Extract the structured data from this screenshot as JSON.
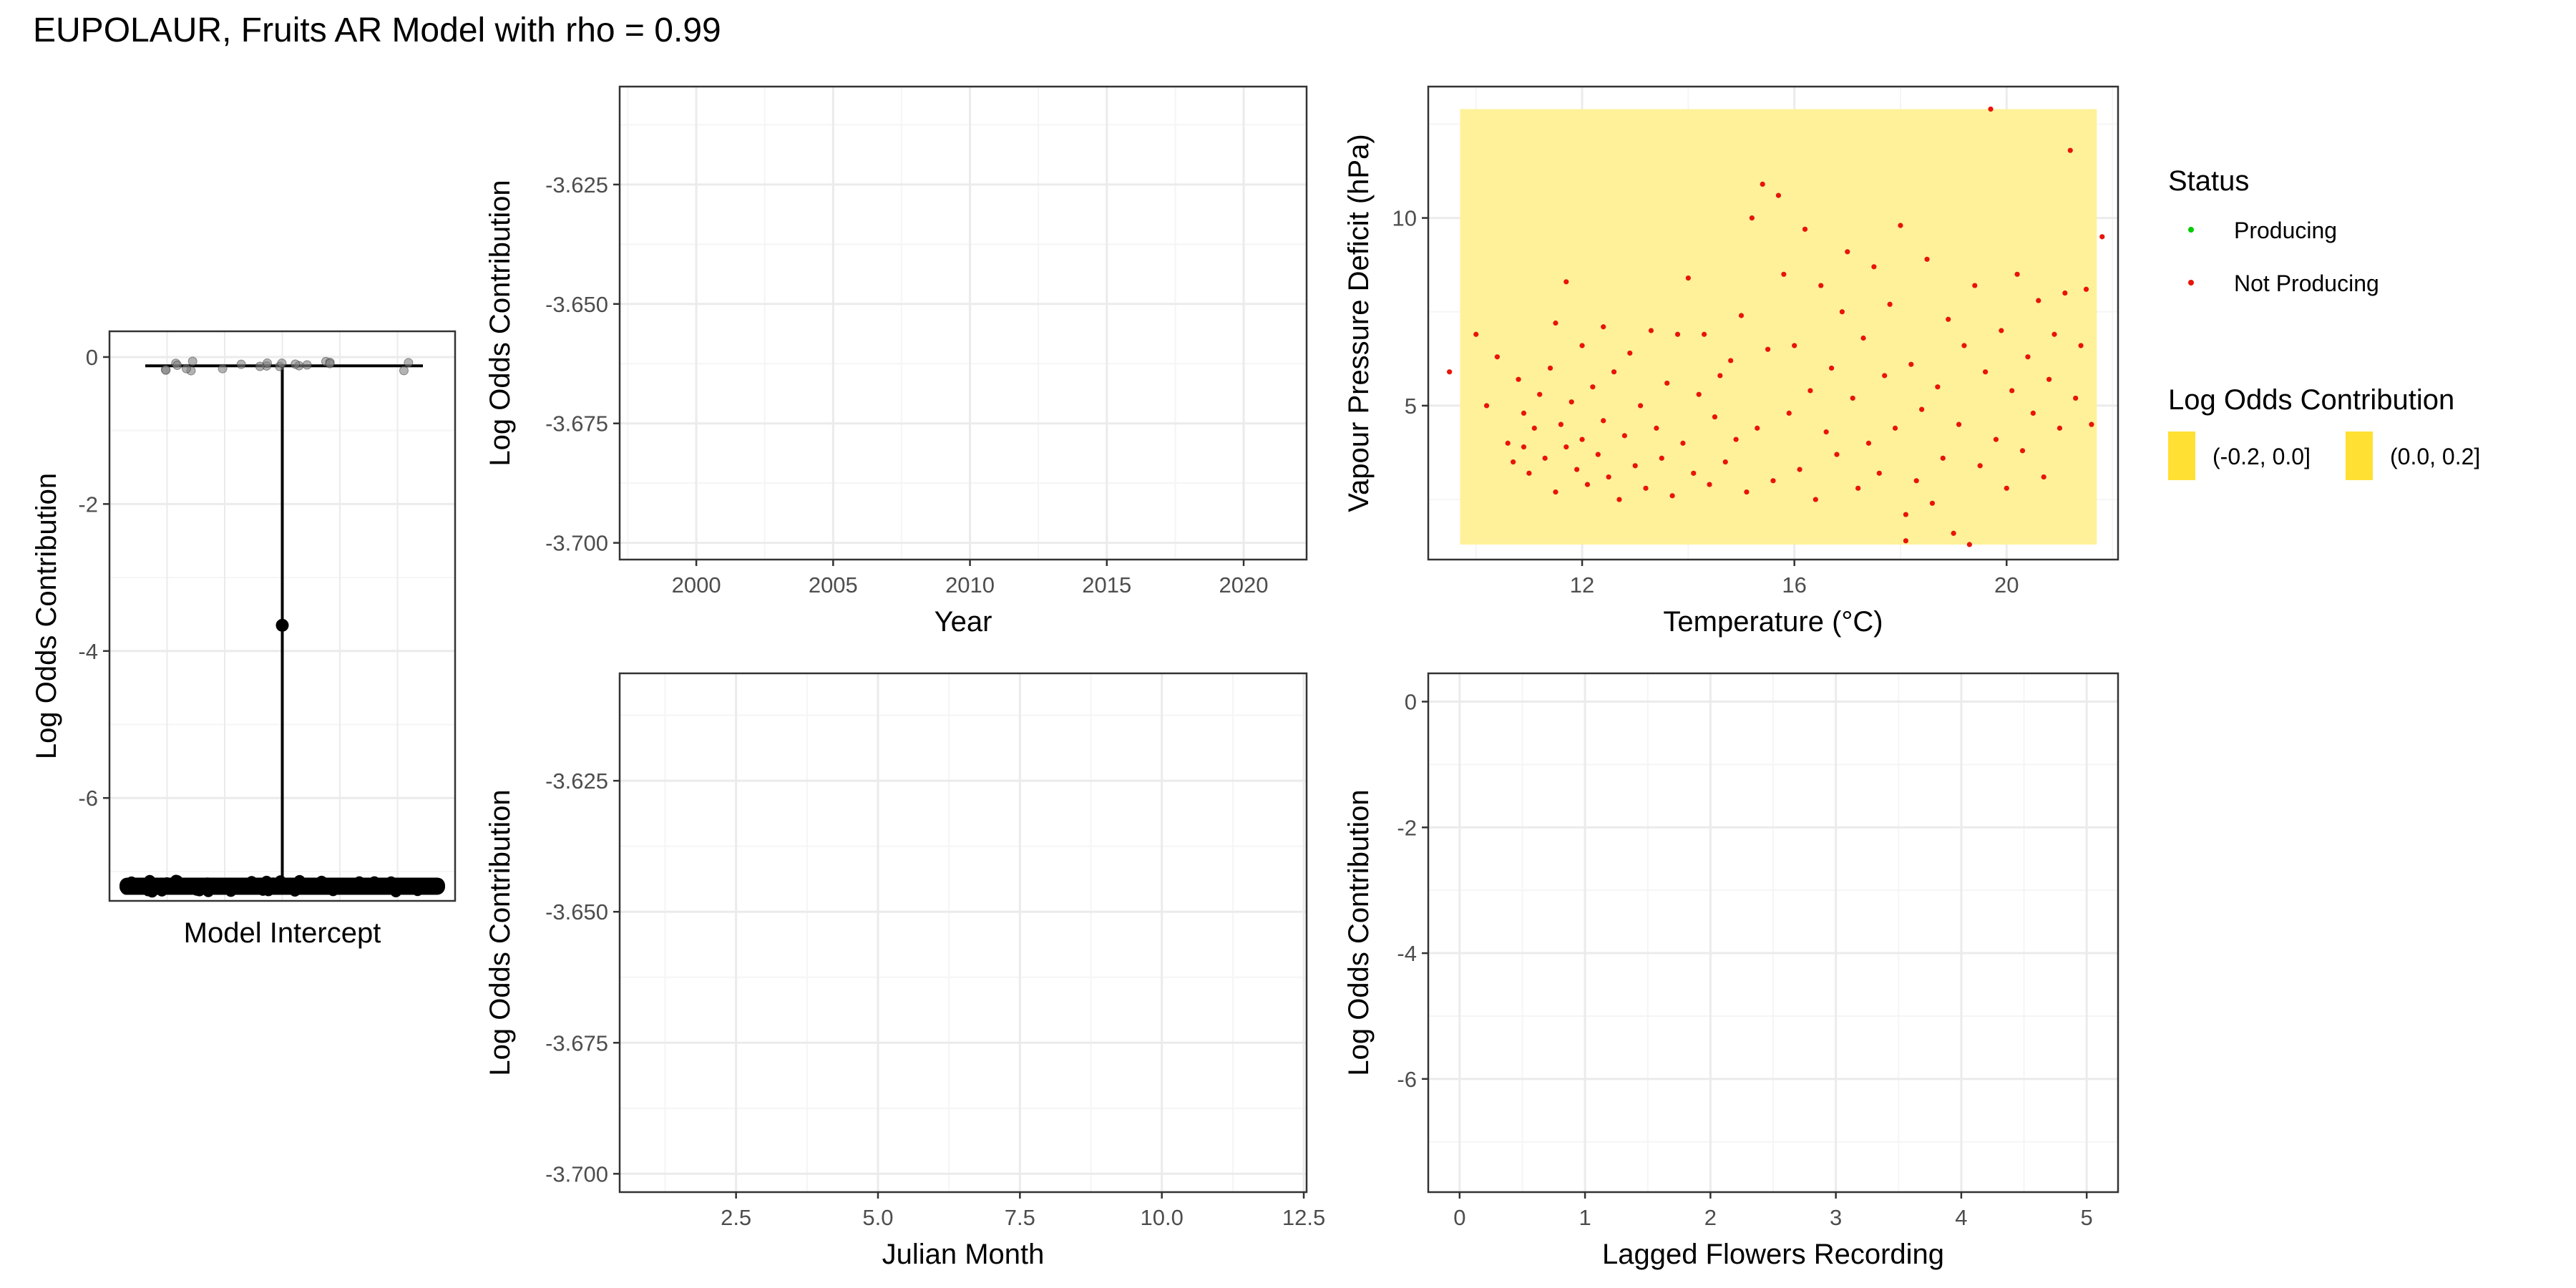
{
  "title": "EUPOLAUR, Fruits AR Model with rho = 0.99",
  "colors": {
    "panel_border": "#333333",
    "grid_major": "#ebebeb",
    "grid_minor": "#f5f5f5",
    "producing": "#00cc00",
    "not_producing": "#e8140a",
    "band_fill": "#fff199",
    "legend_key_fill": "#ffe033",
    "point_dark": "#000000"
  },
  "legend": {
    "status_title": "Status",
    "status_items": [
      {
        "label": "Producing",
        "color": "#00cc00"
      },
      {
        "label": "Not Producing",
        "color": "#e8140a"
      }
    ],
    "contrib_title": "Log Odds Contribution",
    "contrib_items": [
      {
        "label": "(-0.2, 0.0]"
      },
      {
        "label": "(0.0, 0.2]"
      }
    ]
  },
  "chart_data": [
    {
      "id": "intercept",
      "type": "scatter",
      "xlabel": "Model Intercept",
      "ylabel": "Log Odds Contribution",
      "ylim": [
        -7.4,
        0.35
      ],
      "y_ticks": [
        0,
        -2,
        -4,
        -6
      ],
      "y_tick_labels": [
        "0",
        "-2",
        "-4",
        "-6"
      ],
      "x_ticks": [],
      "summary_point": -3.65,
      "range": [
        -7.2,
        -0.1
      ],
      "upper_cluster_y": -0.12,
      "lower_cluster_y": -7.2,
      "grid": true
    },
    {
      "id": "year",
      "type": "scatter",
      "xlabel": "Year",
      "ylabel": "Log Odds Contribution",
      "xlim": [
        1997.2,
        2022.3
      ],
      "ylim": [
        -3.7035,
        -3.6045
      ],
      "x_ticks": [
        2000,
        2005,
        2010,
        2015,
        2020
      ],
      "x_tick_labels": [
        "2000",
        "2005",
        "2010",
        "2015",
        "2020"
      ],
      "y_ticks": [
        -3.625,
        -3.65,
        -3.675,
        -3.7
      ],
      "y_tick_labels": [
        "-3.625",
        "-3.650",
        "-3.675",
        "-3.700"
      ],
      "points": [],
      "grid": true
    },
    {
      "id": "vpd_temperature",
      "type": "heatmap",
      "xlabel": "Temperature (°C)",
      "ylabel": "Vapour Pressure Deficit (hPa)",
      "xlim": [
        9.1,
        22.1
      ],
      "ylim": [
        0.9,
        13.5
      ],
      "x_ticks": [
        12,
        16,
        20
      ],
      "x_tick_labels": [
        "12",
        "16",
        "20"
      ],
      "y_ticks": [
        5,
        10
      ],
      "y_tick_labels": [
        "5",
        "10"
      ],
      "tile": {
        "x": [
          9.7,
          21.7
        ],
        "y": [
          1.3,
          12.9
        ],
        "category": "(0.0, 0.2]"
      },
      "series": [
        {
          "name": "Not Producing",
          "points": [
            [
              9.5,
              5.9
            ],
            [
              10.0,
              6.9
            ],
            [
              10.2,
              5.0
            ],
            [
              10.4,
              6.3
            ],
            [
              10.6,
              4.0
            ],
            [
              10.7,
              3.5
            ],
            [
              10.8,
              5.7
            ],
            [
              10.9,
              3.9
            ],
            [
              10.9,
              4.8
            ],
            [
              11.0,
              3.2
            ],
            [
              11.1,
              4.4
            ],
            [
              11.2,
              5.3
            ],
            [
              11.3,
              3.6
            ],
            [
              11.4,
              6.0
            ],
            [
              11.5,
              2.7
            ],
            [
              11.5,
              7.2
            ],
            [
              11.6,
              4.5
            ],
            [
              11.7,
              3.9
            ],
            [
              11.7,
              8.3
            ],
            [
              11.8,
              5.1
            ],
            [
              11.9,
              3.3
            ],
            [
              12.0,
              6.6
            ],
            [
              12.0,
              4.1
            ],
            [
              12.1,
              2.9
            ],
            [
              12.2,
              5.5
            ],
            [
              12.3,
              3.7
            ],
            [
              12.4,
              7.1
            ],
            [
              12.4,
              4.6
            ],
            [
              12.5,
              3.1
            ],
            [
              12.6,
              5.9
            ],
            [
              12.7,
              2.5
            ],
            [
              12.8,
              4.2
            ],
            [
              12.9,
              6.4
            ],
            [
              13.0,
              3.4
            ],
            [
              13.1,
              5.0
            ],
            [
              13.2,
              2.8
            ],
            [
              13.3,
              7.0
            ],
            [
              13.4,
              4.4
            ],
            [
              13.5,
              3.6
            ],
            [
              13.6,
              5.6
            ],
            [
              13.7,
              2.6
            ],
            [
              13.8,
              6.9
            ],
            [
              13.9,
              4.0
            ],
            [
              14.0,
              8.4
            ],
            [
              14.1,
              3.2
            ],
            [
              14.2,
              5.3
            ],
            [
              14.3,
              6.9
            ],
            [
              14.4,
              2.9
            ],
            [
              14.5,
              4.7
            ],
            [
              14.6,
              5.8
            ],
            [
              14.7,
              3.5
            ],
            [
              14.8,
              6.2
            ],
            [
              14.9,
              4.1
            ],
            [
              15.0,
              7.4
            ],
            [
              15.1,
              2.7
            ],
            [
              15.2,
              10.0
            ],
            [
              15.3,
              4.4
            ],
            [
              15.4,
              10.9
            ],
            [
              15.5,
              6.5
            ],
            [
              15.6,
              3.0
            ],
            [
              15.7,
              10.6
            ],
            [
              15.8,
              8.5
            ],
            [
              15.9,
              4.8
            ],
            [
              16.0,
              6.6
            ],
            [
              16.1,
              3.3
            ],
            [
              16.2,
              9.7
            ],
            [
              16.3,
              5.4
            ],
            [
              16.4,
              2.5
            ],
            [
              16.5,
              8.2
            ],
            [
              16.6,
              4.3
            ],
            [
              16.7,
              6.0
            ],
            [
              16.8,
              3.7
            ],
            [
              16.9,
              7.5
            ],
            [
              17.0,
              9.1
            ],
            [
              17.1,
              5.2
            ],
            [
              17.2,
              2.8
            ],
            [
              17.3,
              6.8
            ],
            [
              17.4,
              4.0
            ],
            [
              17.5,
              8.7
            ],
            [
              17.6,
              3.2
            ],
            [
              17.7,
              5.8
            ],
            [
              17.8,
              7.7
            ],
            [
              17.9,
              4.4
            ],
            [
              18.0,
              9.8
            ],
            [
              18.1,
              2.1
            ],
            [
              18.1,
              1.4
            ],
            [
              18.2,
              6.1
            ],
            [
              18.3,
              3.0
            ],
            [
              18.4,
              4.9
            ],
            [
              18.5,
              8.9
            ],
            [
              18.6,
              2.4
            ],
            [
              18.7,
              5.5
            ],
            [
              18.8,
              3.6
            ],
            [
              18.9,
              7.3
            ],
            [
              19.0,
              1.6
            ],
            [
              19.1,
              4.5
            ],
            [
              19.2,
              6.6
            ],
            [
              19.3,
              1.3
            ],
            [
              19.4,
              8.2
            ],
            [
              19.5,
              3.4
            ],
            [
              19.6,
              5.9
            ],
            [
              19.7,
              12.9
            ],
            [
              19.8,
              4.1
            ],
            [
              19.9,
              7.0
            ],
            [
              20.0,
              2.8
            ],
            [
              20.1,
              5.4
            ],
            [
              20.2,
              8.5
            ],
            [
              20.3,
              3.8
            ],
            [
              20.4,
              6.3
            ],
            [
              20.5,
              4.8
            ],
            [
              20.6,
              7.8
            ],
            [
              20.7,
              3.1
            ],
            [
              20.8,
              5.7
            ],
            [
              20.9,
              6.9
            ],
            [
              21.0,
              4.4
            ],
            [
              21.1,
              8.0
            ],
            [
              21.2,
              11.8
            ],
            [
              21.3,
              5.2
            ],
            [
              21.4,
              6.6
            ],
            [
              21.5,
              8.1
            ],
            [
              21.6,
              4.5
            ],
            [
              21.8,
              9.5
            ]
          ]
        },
        {
          "name": "Producing",
          "points": []
        }
      ],
      "grid": true
    },
    {
      "id": "julian_month",
      "type": "scatter",
      "xlabel": "Julian Month",
      "ylabel": "Log Odds Contribution",
      "xlim": [
        0.45,
        12.55
      ],
      "ylim": [
        -3.7035,
        -3.6045
      ],
      "x_ticks": [
        2.5,
        5.0,
        7.5,
        10.0,
        12.5
      ],
      "x_tick_labels": [
        "2.5",
        "5.0",
        "7.5",
        "10.0",
        "12.5"
      ],
      "y_ticks": [
        -3.625,
        -3.65,
        -3.675,
        -3.7
      ],
      "y_tick_labels": [
        "-3.625",
        "-3.650",
        "-3.675",
        "-3.700"
      ],
      "points": [],
      "grid": true
    },
    {
      "id": "lagged_flowers",
      "type": "scatter",
      "xlabel": "Lagged Flowers Recording",
      "ylabel": "Log Odds Contribution",
      "xlim": [
        -0.25,
        5.25
      ],
      "ylim": [
        -7.8,
        0.45
      ],
      "x_ticks": [
        0,
        1,
        2,
        3,
        4,
        5
      ],
      "x_tick_labels": [
        "0",
        "1",
        "2",
        "3",
        "4",
        "5"
      ],
      "y_ticks": [
        0,
        -2,
        -4,
        -6
      ],
      "y_tick_labels": [
        "0",
        "-2",
        "-4",
        "-6"
      ],
      "points": [],
      "grid": true
    }
  ]
}
